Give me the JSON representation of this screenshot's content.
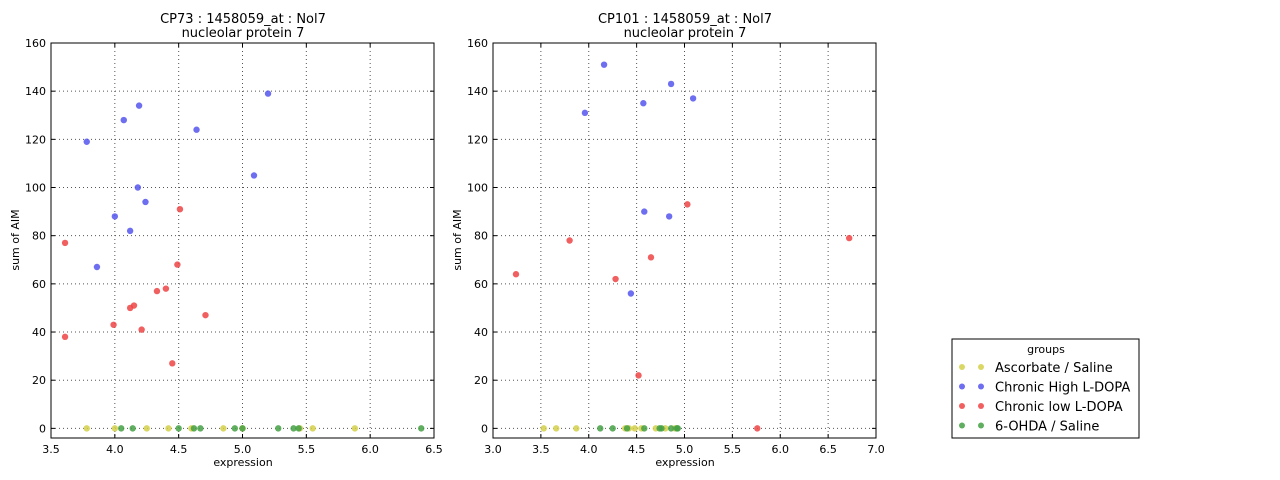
{
  "chart_data": [
    {
      "type": "scatter",
      "title": "CP73 : 1458059_at : Nol7",
      "subtitle": "nucleolar protein 7",
      "xlabel": "expression",
      "ylabel": "sum of AIM",
      "xlim": [
        3.5,
        6.5
      ],
      "ylim": [
        -4,
        160
      ],
      "xticks": [
        "3.5",
        "4.0",
        "4.5",
        "5.0",
        "5.5",
        "6.0",
        "6.5"
      ],
      "yticks": [
        "0",
        "20",
        "40",
        "60",
        "80",
        "100",
        "120",
        "140",
        "160"
      ],
      "grid": true,
      "series": [
        {
          "name": "Ascorbate / Saline",
          "color": "#d4d04a",
          "x": [
            3.78,
            4.0,
            4.25,
            4.42,
            4.6,
            4.85,
            5.0,
            5.45,
            5.55,
            5.88
          ],
          "y": [
            0,
            0,
            0,
            0,
            0,
            0,
            0,
            0,
            0,
            0
          ]
        },
        {
          "name": "Chronic High L-DOPA",
          "color": "#5555ee",
          "x": [
            3.78,
            3.86,
            4.0,
            4.07,
            4.12,
            4.18,
            4.19,
            4.24,
            4.64,
            5.09,
            5.2
          ],
          "y": [
            119,
            67,
            88,
            128,
            82,
            100,
            134,
            94,
            124,
            105,
            139
          ]
        },
        {
          "name": "Chronic low L-DOPA",
          "color": "#ee4444",
          "x": [
            3.61,
            3.61,
            3.99,
            4.12,
            4.15,
            4.21,
            4.33,
            4.4,
            4.45,
            4.49,
            4.51,
            4.71
          ],
          "y": [
            77,
            38,
            43,
            50,
            51,
            41,
            57,
            58,
            27,
            68,
            91,
            47
          ]
        },
        {
          "name": "6-OHDA / Saline",
          "color": "#44a044",
          "x": [
            4.05,
            4.14,
            4.5,
            4.62,
            4.67,
            4.94,
            5.0,
            5.28,
            5.4,
            5.44,
            6.4
          ],
          "y": [
            0,
            0,
            0,
            0,
            0,
            0,
            0,
            0,
            0,
            0,
            0
          ]
        }
      ]
    },
    {
      "type": "scatter",
      "title": "CP101 : 1458059_at : Nol7",
      "subtitle": "nucleolar protein 7",
      "xlabel": "expression",
      "ylabel": "sum of AIM",
      "xlim": [
        3.0,
        7.0
      ],
      "ylim": [
        -4,
        160
      ],
      "xticks": [
        "3.0",
        "3.5",
        "4.0",
        "4.5",
        "5.0",
        "5.5",
        "6.0",
        "6.5",
        "7.0"
      ],
      "yticks": [
        "0",
        "20",
        "40",
        "60",
        "80",
        "100",
        "120",
        "140",
        "160"
      ],
      "grid": true,
      "series": [
        {
          "name": "Ascorbate / Saline",
          "color": "#d4d04a",
          "x": [
            3.53,
            3.66,
            3.87,
            4.38,
            4.42,
            4.48,
            4.55,
            4.7,
            4.8,
            4.9
          ],
          "y": [
            0,
            0,
            0,
            0,
            0,
            0,
            0,
            0,
            0,
            0
          ]
        },
        {
          "name": "Chronic High L-DOPA",
          "color": "#5555ee",
          "x": [
            3.96,
            4.16,
            4.44,
            4.57,
            4.58,
            4.84,
            4.86,
            5.09
          ],
          "y": [
            131,
            151,
            56,
            135,
            90,
            88,
            143,
            137
          ]
        },
        {
          "name": "Chronic low L-DOPA",
          "color": "#ee4444",
          "x": [
            3.24,
            3.8,
            4.28,
            4.52,
            4.65,
            5.03,
            5.76,
            6.72
          ],
          "y": [
            64,
            78,
            62,
            22,
            71,
            93,
            0,
            79
          ]
        },
        {
          "name": "6-OHDA / Saline",
          "color": "#44a044",
          "x": [
            4.12,
            4.25,
            4.4,
            4.58,
            4.74,
            4.76,
            4.86,
            4.92,
            4.93
          ],
          "y": [
            0,
            0,
            0,
            0,
            0,
            0,
            0,
            0,
            0
          ]
        }
      ]
    }
  ],
  "legend": {
    "title": "groups",
    "placement": "lower-right",
    "entries": [
      {
        "label": "Ascorbate / Saline",
        "color": "#d4d04a"
      },
      {
        "label": "Chronic High L-DOPA",
        "color": "#5555ee"
      },
      {
        "label": "Chronic low L-DOPA",
        "color": "#ee4444"
      },
      {
        "label": "6-OHDA / Saline",
        "color": "#44a044"
      }
    ]
  }
}
